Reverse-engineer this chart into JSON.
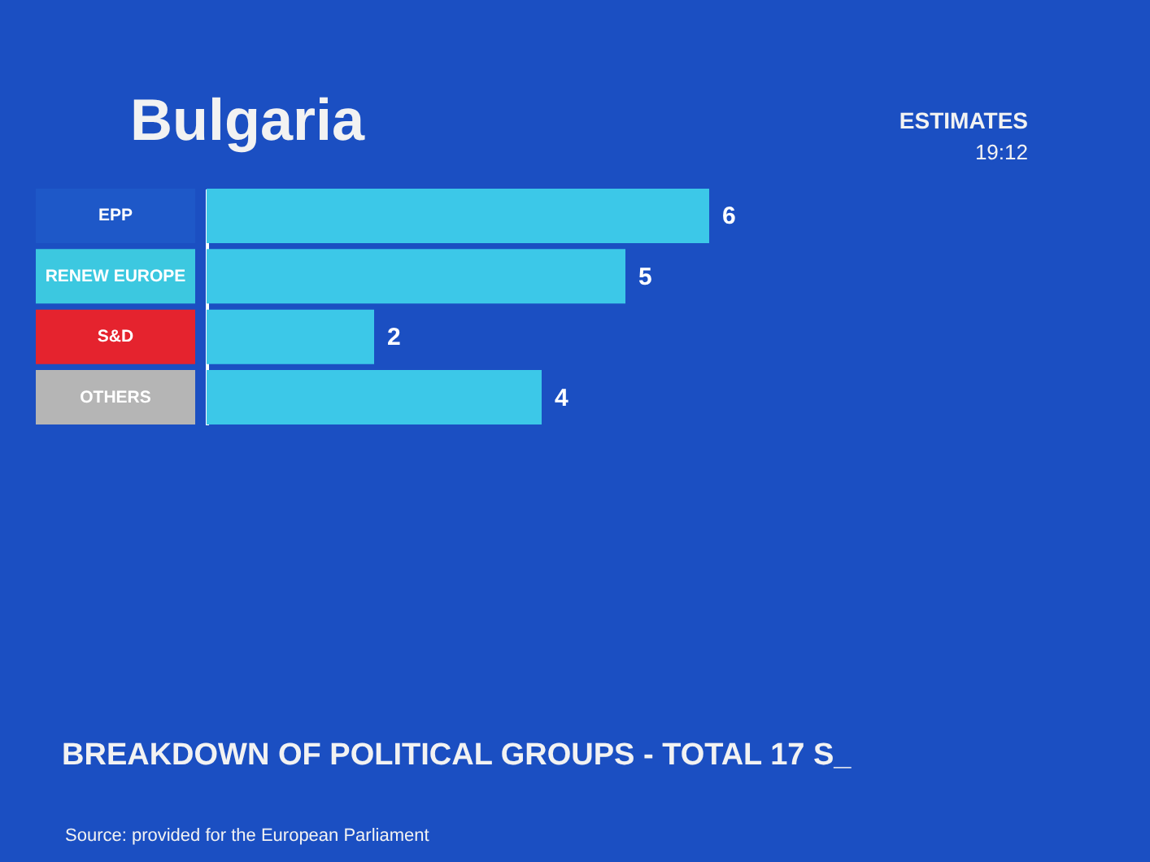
{
  "chart_data": {
    "type": "bar",
    "orientation": "horizontal",
    "title": "Bulgaria",
    "categories": [
      "EPP",
      "RENEW EUROPE",
      "S&D",
      "OTHERS"
    ],
    "values": [
      6,
      5,
      2,
      4
    ],
    "color": "#3cc8e8",
    "data_labels": true,
    "annotations": [
      "ESTIMATES",
      "19:12",
      "BREAKDOWN OF POLITICAL GROUPS - TOTAL 17 S_",
      "Source: provided for the European Parliament"
    ]
  }
}
